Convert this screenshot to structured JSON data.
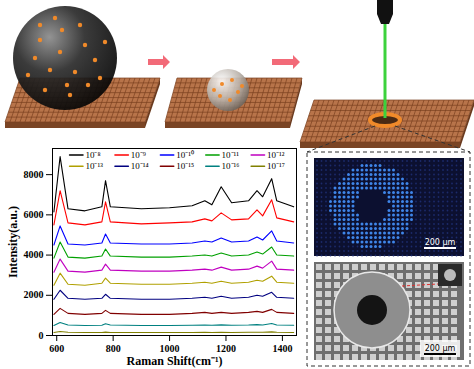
{
  "chart_data": {
    "type": "line",
    "x_label": "Raman Shift(cm⁻¹)",
    "y_label": "Intensity(a.u.)",
    "x": [
      590,
      612,
      640,
      700,
      760,
      773,
      790,
      900,
      1000,
      1080,
      1125,
      1150,
      1183,
      1220,
      1280,
      1310,
      1330,
      1362,
      1380,
      1440
    ],
    "series": [
      {
        "name": "10⁻⁸",
        "color": "#000000",
        "values": [
          6150,
          8900,
          6300,
          6200,
          6400,
          7700,
          6400,
          6300,
          6350,
          6450,
          6700,
          6500,
          7400,
          6600,
          6700,
          7200,
          6900,
          7800,
          6700,
          6400
        ]
      },
      {
        "name": "10⁻⁹",
        "color": "#ff0000",
        "values": [
          5500,
          7200,
          5600,
          5500,
          5650,
          6650,
          5650,
          5550,
          5600,
          5650,
          5800,
          5700,
          6100,
          5750,
          5800,
          6250,
          5950,
          6750,
          5850,
          5650
        ]
      },
      {
        "name": "10⁻¹⁰",
        "color": "#0000ff",
        "values": [
          4500,
          5450,
          4550,
          4500,
          4600,
          5050,
          4600,
          4550,
          4550,
          4600,
          4700,
          4650,
          4850,
          4650,
          4700,
          4900,
          4750,
          5200,
          4700,
          4600
        ]
      },
      {
        "name": "10⁻¹¹",
        "color": "#00a000",
        "values": [
          3850,
          4650,
          3900,
          3850,
          3950,
          4300,
          3950,
          3900,
          3900,
          3950,
          4000,
          3950,
          4100,
          3950,
          4000,
          4150,
          4050,
          4400,
          4000,
          3950
        ]
      },
      {
        "name": "10⁻¹²",
        "color": "#c000c0",
        "values": [
          3150,
          3800,
          3200,
          3150,
          3250,
          3550,
          3250,
          3200,
          3200,
          3250,
          3300,
          3250,
          3400,
          3250,
          3300,
          3450,
          3350,
          3700,
          3300,
          3250
        ]
      },
      {
        "name": "10⁻¹³",
        "color": "#b0a000",
        "values": [
          2500,
          3100,
          2550,
          2500,
          2600,
          2850,
          2600,
          2550,
          2550,
          2600,
          2650,
          2600,
          2700,
          2600,
          2650,
          2750,
          2700,
          2950,
          2650,
          2600
        ]
      },
      {
        "name": "10⁻¹⁴",
        "color": "#000080",
        "values": [
          1800,
          2250,
          1850,
          1800,
          1850,
          2050,
          1850,
          1800,
          1800,
          1850,
          1900,
          1850,
          1950,
          1850,
          1900,
          2000,
          1950,
          2150,
          1900,
          1850
        ]
      },
      {
        "name": "10⁻¹⁵",
        "color": "#800000",
        "values": [
          1050,
          1350,
          1100,
          1050,
          1100,
          1250,
          1100,
          1050,
          1050,
          1100,
          1150,
          1100,
          1150,
          1100,
          1150,
          1200,
          1150,
          1300,
          1150,
          1100
        ]
      },
      {
        "name": "10⁻¹⁶",
        "color": "#008080",
        "values": [
          500,
          650,
          520,
          500,
          510,
          580,
          520,
          500,
          500,
          510,
          520,
          510,
          530,
          510,
          520,
          540,
          520,
          600,
          520,
          510
        ]
      },
      {
        "name": "10⁻¹⁷",
        "color": "#808000",
        "values": [
          150,
          200,
          160,
          150,
          150,
          170,
          150,
          150,
          150,
          150,
          160,
          150,
          160,
          150,
          160,
          160,
          160,
          180,
          160,
          150
        ]
      }
    ],
    "xlim": [
      585,
      1450
    ],
    "xticks": [
      600,
      800,
      1000,
      1200,
      1400
    ],
    "ylim": [
      0,
      9300
    ],
    "yticks": [
      0,
      2000,
      4000,
      6000,
      8000
    ],
    "grid": false,
    "legend": "top"
  },
  "micrographs": [
    {
      "scale_bar": "200 μm"
    },
    {
      "scale_bar": "200 μm"
    }
  ]
}
